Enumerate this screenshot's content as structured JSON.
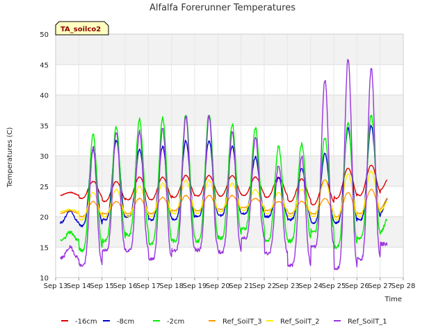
{
  "chart_data": {
    "type": "line",
    "title": "Alfalfa Forerunner Temperatures",
    "xlabel": "Time",
    "ylabel": "Temperatures (C)",
    "badge": "TA_soilco2",
    "ylim": [
      10,
      50
    ],
    "yticks": [
      10,
      15,
      20,
      25,
      30,
      35,
      40,
      45,
      50
    ],
    "xlim": [
      13,
      28
    ],
    "xticks": [
      13,
      14,
      15,
      16,
      17,
      18,
      19,
      20,
      21,
      22,
      23,
      24,
      25,
      26,
      27,
      28
    ],
    "xtick_labels": [
      "Sep 13",
      "Sep 14",
      "Sep 15",
      "Sep 16",
      "Sep 17",
      "Sep 18",
      "Sep 19",
      "Sep 20",
      "Sep 21",
      "Sep 22",
      "Sep 23",
      "Sep 24",
      "Sep 25",
      "Sep 26",
      "Sep 27",
      "Sep 28"
    ],
    "grid": true,
    "legend_position": "bottom",
    "days": [
      13.2,
      14,
      15,
      16,
      17,
      18,
      19,
      20,
      21,
      22,
      23,
      24,
      25,
      26,
      27
    ],
    "series": [
      {
        "name": "-16cm",
        "color": "#dd0000",
        "min": [
          23.5,
          23.0,
          22.5,
          22.8,
          22.8,
          23.2,
          23.4,
          23.4,
          23.5,
          23.2,
          22.5,
          22.0,
          23.0,
          23.5,
          24.0
        ],
        "max": [
          24.0,
          25.8,
          25.8,
          26.5,
          26.5,
          26.8,
          26.8,
          26.8,
          26.5,
          26.5,
          26.2,
          26.0,
          28.0,
          28.5,
          29.0
        ],
        "end": 26.0
      },
      {
        "name": "-8cm",
        "color": "#0000cc",
        "min": [
          19.0,
          18.5,
          19.5,
          20.0,
          19.5,
          19.5,
          20.0,
          20.2,
          20.5,
          20.0,
          19.5,
          19.0,
          19.0,
          19.5,
          20.0
        ],
        "max": [
          21.0,
          31.0,
          32.5,
          31.0,
          31.5,
          32.5,
          32.5,
          31.5,
          29.8,
          26.5,
          28.0,
          30.5,
          34.5,
          35.0,
          36.0
        ],
        "end": 23.0
      },
      {
        "name": "-2cm",
        "color": "#00ee00",
        "min": [
          16.0,
          14.5,
          16.0,
          17.0,
          15.5,
          16.0,
          16.0,
          16.5,
          18.0,
          16.0,
          16.0,
          17.5,
          15.0,
          16.5,
          17.0
        ],
        "max": [
          17.5,
          33.5,
          34.8,
          36.0,
          36.3,
          36.8,
          37.0,
          35.2,
          34.5,
          31.5,
          32.0,
          33.0,
          35.5,
          36.8,
          38.5
        ],
        "end": 19.5
      },
      {
        "name": "Ref_SoilT_3",
        "color": "#ff9900",
        "min": [
          20.5,
          20.0,
          20.5,
          20.5,
          20.5,
          21.0,
          21.0,
          21.2,
          21.5,
          21.0,
          20.5,
          20.5,
          20.0,
          20.5,
          21.0
        ],
        "max": [
          21.0,
          22.5,
          22.5,
          23.0,
          23.2,
          23.5,
          23.5,
          23.5,
          23.0,
          22.5,
          22.5,
          23.0,
          24.0,
          24.5,
          25.5
        ],
        "end": 23.0
      },
      {
        "name": "Ref_SoilT_2",
        "color": "#ffee00",
        "min": [
          20.8,
          19.5,
          20.0,
          20.0,
          20.0,
          20.5,
          20.5,
          20.8,
          21.0,
          20.5,
          20.0,
          20.0,
          19.5,
          20.0,
          20.5
        ],
        "max": [
          21.2,
          24.0,
          24.5,
          25.0,
          25.5,
          26.0,
          26.0,
          25.5,
          24.5,
          24.0,
          24.5,
          26.0,
          27.0,
          27.5,
          28.5
        ],
        "end": 22.5
      },
      {
        "name": "Ref_SoilT_1",
        "color": "#9933dd",
        "min": [
          13.2,
          12.0,
          14.5,
          14.5,
          13.0,
          14.5,
          14.5,
          14.2,
          16.5,
          14.0,
          12.0,
          15.0,
          11.5,
          13.0,
          15.5
        ],
        "max": [
          15.0,
          31.5,
          34.0,
          34.0,
          34.5,
          36.5,
          36.5,
          34.0,
          33.0,
          28.5,
          30.0,
          42.5,
          46.0,
          44.5,
          46.0
        ],
        "end": 15.5
      }
    ]
  }
}
